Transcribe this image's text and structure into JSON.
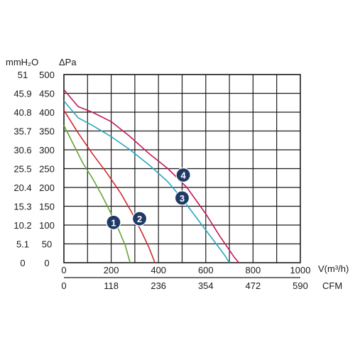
{
  "chart_data": {
    "type": "line",
    "title": "",
    "y_units": [
      "mmH₂O",
      "ΔPa"
    ],
    "x_units": [
      "V(m³/h)",
      "CFM"
    ],
    "x_ticks_primary": [
      "0",
      "200",
      "400",
      "600",
      "800",
      "1000"
    ],
    "x_ticks_secondary": [
      "0",
      "118",
      "236",
      "354",
      "472",
      "590"
    ],
    "y_ticks_pa": [
      "0",
      "50",
      "100",
      "150",
      "200",
      "250",
      "300",
      "350",
      "400",
      "450",
      "500"
    ],
    "y_ticks_mmh2o": [
      "0",
      "5.1",
      "10.2",
      "15.3",
      "20.4",
      "25.5",
      "30.6",
      "35.7",
      "40.8",
      "45.9",
      "51"
    ],
    "xlim": [
      0,
      1000
    ],
    "ylim": [
      0,
      500
    ],
    "grid": true,
    "series": [
      {
        "name": "1",
        "color": "#6aa336",
        "points": [
          [
            0,
            365
          ],
          [
            40,
            315
          ],
          [
            80,
            265
          ],
          [
            120,
            225
          ],
          [
            160,
            180
          ],
          [
            200,
            130
          ],
          [
            230,
            90
          ],
          [
            260,
            45
          ],
          [
            280,
            0
          ]
        ]
      },
      {
        "name": "2",
        "color": "#d4272d",
        "points": [
          [
            0,
            405
          ],
          [
            60,
            345
          ],
          [
            120,
            290
          ],
          [
            180,
            240
          ],
          [
            240,
            185
          ],
          [
            290,
            130
          ],
          [
            330,
            80
          ],
          [
            360,
            40
          ],
          [
            385,
            0
          ]
        ]
      },
      {
        "name": "3",
        "color": "#2aa6c4",
        "points": [
          [
            0,
            430
          ],
          [
            60,
            385
          ],
          [
            120,
            365
          ],
          [
            200,
            335
          ],
          [
            280,
            300
          ],
          [
            360,
            260
          ],
          [
            440,
            215
          ],
          [
            500,
            170
          ],
          [
            560,
            120
          ],
          [
            620,
            70
          ],
          [
            680,
            20
          ],
          [
            700,
            0
          ]
        ]
      },
      {
        "name": "4",
        "color": "#c2185b",
        "points": [
          [
            0,
            460
          ],
          [
            60,
            415
          ],
          [
            120,
            400
          ],
          [
            200,
            375
          ],
          [
            280,
            335
          ],
          [
            360,
            290
          ],
          [
            440,
            250
          ],
          [
            520,
            200
          ],
          [
            600,
            130
          ],
          [
            660,
            70
          ],
          [
            720,
            15
          ],
          [
            740,
            0
          ]
        ]
      }
    ],
    "markers": [
      {
        "label": "1",
        "x": 210,
        "y": 107
      },
      {
        "label": "2",
        "x": 320,
        "y": 117
      },
      {
        "label": "3",
        "x": 500,
        "y": 172
      },
      {
        "label": "4",
        "x": 505,
        "y": 233
      }
    ]
  }
}
